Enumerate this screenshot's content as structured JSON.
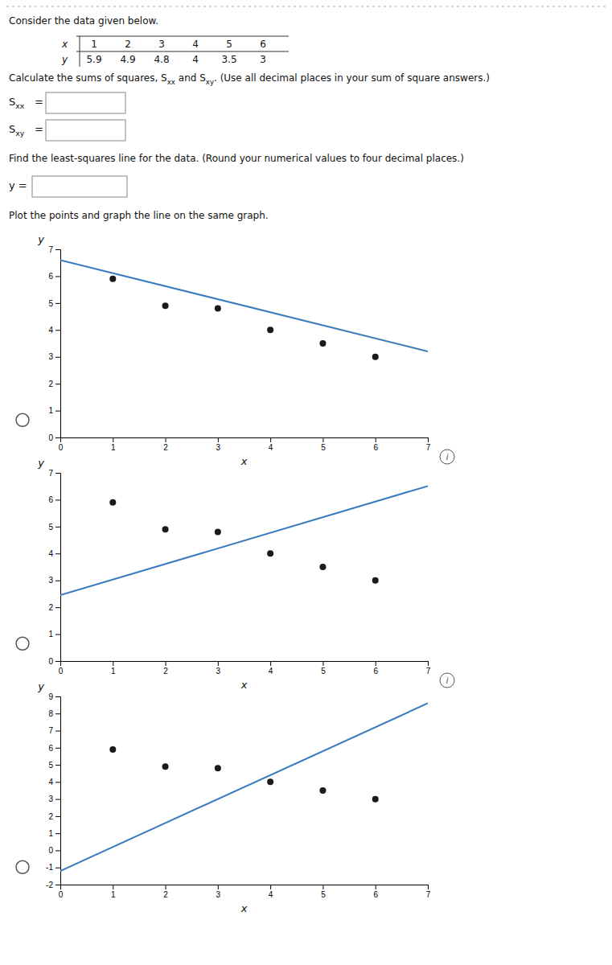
{
  "annotations": [
    "Consider the data given below.",
    "x",
    "y",
    "Calculate the sums of squares, S",
    "xx",
    " and S",
    "xy",
    ". (Use all decimal places in your sum of square answers.)",
    "S",
    "xx",
    "=",
    "S",
    "xy",
    "=",
    "Find the least-squares line for the data. (Round your numerical values to four decimal places.)",
    "y =",
    "Plot the points and graph the line on the same graph."
  ],
  "chart_data": [
    {
      "type": "scatter",
      "x_label": "x",
      "y_label": "y",
      "x": [
        1,
        2,
        3,
        4,
        5,
        6
      ],
      "series": [
        {
          "type": "scatter",
          "color": "#1a1a1a",
          "values": [
            5.9,
            4.9,
            4.8,
            4.0,
            3.5,
            3.0
          ]
        },
        {
          "type": "line",
          "color": "#3a7abf",
          "x": [
            0,
            7
          ],
          "values": [
            6.6,
            3.2001
          ]
        }
      ],
      "xlim": [
        0,
        7
      ],
      "xticks": [
        0,
        1,
        2,
        3,
        4,
        5,
        6,
        7
      ],
      "ylim": [
        0,
        7
      ],
      "yticks": [
        0,
        1,
        2,
        3,
        4,
        5,
        6,
        7
      ],
      "annotations": [
        "i"
      ]
    },
    {
      "type": "scatter",
      "x_label": "x",
      "y_label": "y",
      "x": [
        1,
        2,
        3,
        4,
        5,
        6
      ],
      "series": [
        {
          "type": "scatter",
          "color": "#1a1a1a",
          "values": [
            5.9,
            4.9,
            4.8,
            4.0,
            3.5,
            3.0
          ]
        },
        {
          "type": "line",
          "color": "#3a7abf",
          "x": [
            0,
            7
          ],
          "values": [
            2.45,
            6.51
          ]
        }
      ],
      "xlim": [
        0,
        7
      ],
      "xticks": [
        0,
        1,
        2,
        3,
        4,
        5,
        6,
        7
      ],
      "ylim": [
        0,
        7
      ],
      "yticks": [
        0,
        1,
        2,
        3,
        4,
        5,
        6,
        7
      ],
      "annotations": [
        "i"
      ]
    },
    {
      "type": "scatter",
      "x_label": "x",
      "y_label": "y",
      "x": [
        1,
        2,
        3,
        4,
        5,
        6
      ],
      "series": [
        {
          "type": "scatter",
          "color": "#1a1a1a",
          "values": [
            5.9,
            4.9,
            4.8,
            4.0,
            3.5,
            3.0
          ]
        },
        {
          "type": "line",
          "color": "#3a7abf",
          "x": [
            0,
            7
          ],
          "values": [
            -1.2,
            8.6
          ]
        }
      ],
      "xlim": [
        0,
        7
      ],
      "xticks": [
        0,
        1,
        2,
        3,
        4,
        5,
        6,
        7
      ],
      "ylim": [
        -2,
        9
      ],
      "yticks": [
        -2,
        -1,
        0,
        1,
        2,
        3,
        4,
        5,
        6,
        7,
        8,
        9
      ]
    }
  ]
}
